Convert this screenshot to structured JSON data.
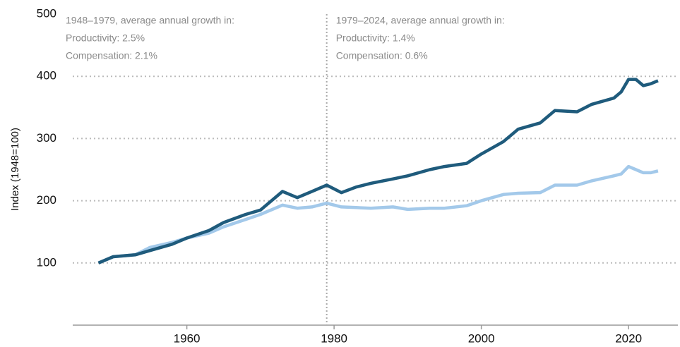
{
  "chart_data": {
    "type": "line",
    "y_label": "Index (1948=100)",
    "annotations": [
      [
        "1948–1979, average annual growth in:",
        "Productivity: 2.5%",
        "Compensation: 2.1%"
      ],
      [
        "1979–2024, average annual growth in:",
        "Productivity: 1.4%",
        "Compensation: 0.6%"
      ]
    ],
    "divider": 1979,
    "x": [
      1948,
      1950,
      1953,
      1955,
      1958,
      1960,
      1963,
      1965,
      1968,
      1970,
      1973,
      1975,
      1977,
      1979,
      1981,
      1983,
      1985,
      1988,
      1990,
      1993,
      1995,
      1998,
      2000,
      2003,
      2005,
      2008,
      2010,
      2013,
      2015,
      2018,
      2019,
      2020,
      2021,
      2022,
      2023,
      2024
    ],
    "series": [
      {
        "color": "#1f5b7c",
        "values": [
          100,
          110,
          113,
          120,
          130,
          140,
          152,
          165,
          178,
          185,
          215,
          205,
          215,
          225,
          213,
          222,
          228,
          235,
          240,
          250,
          255,
          260,
          275,
          295,
          315,
          325,
          345,
          343,
          355,
          365,
          375,
          395,
          395,
          385,
          388,
          393
        ]
      },
      {
        "color": "#a3c9ea",
        "values": [
          100,
          110,
          113,
          125,
          133,
          140,
          148,
          158,
          170,
          178,
          193,
          188,
          190,
          196,
          190,
          189,
          188,
          190,
          186,
          188,
          188,
          192,
          200,
          210,
          212,
          213,
          225,
          225,
          232,
          240,
          243,
          255,
          250,
          245,
          245,
          248
        ]
      }
    ],
    "xlim": [
      1944.5,
      2026.7
    ],
    "ylim": [
      0,
      500
    ],
    "xticks": [
      1960,
      1980,
      2000,
      2020
    ],
    "yticks": [
      100,
      200,
      300,
      400,
      500
    ],
    "grid": true
  }
}
